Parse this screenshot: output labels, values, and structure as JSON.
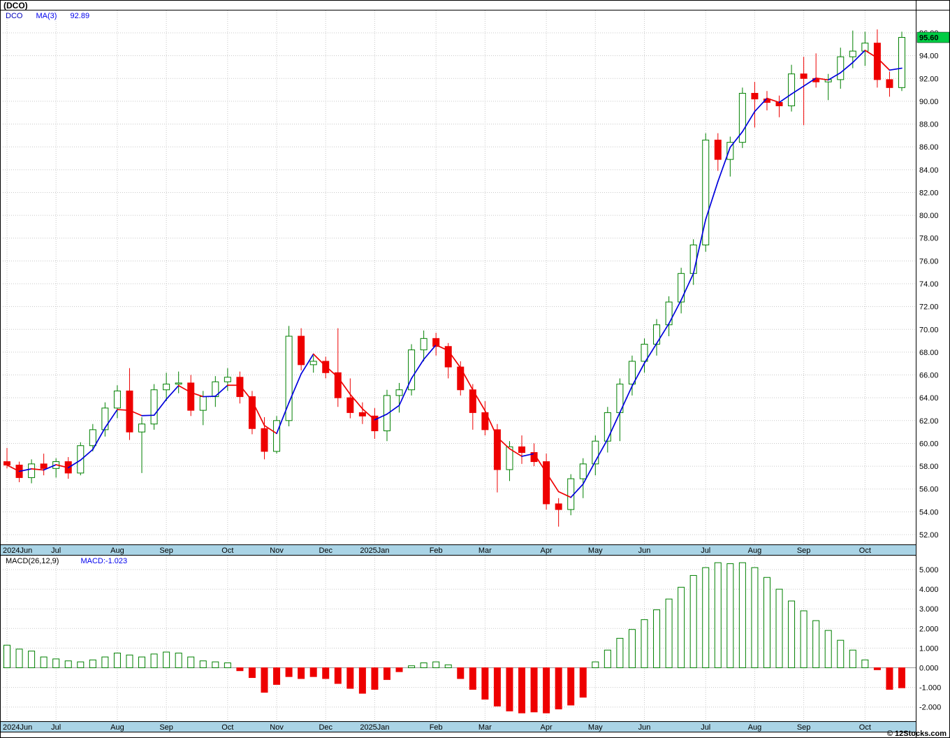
{
  "page_title": "(DCO)",
  "copyright": "© 12Stocks.com",
  "main_legend": {
    "symbol": "DCO",
    "ma_label": "MA(3)",
    "ma_value": "92.89"
  },
  "macd_legend": {
    "label": "MACD(26,12,9)",
    "value": "MACD:-1.023"
  },
  "last_price_badge": "95.60",
  "colors": {
    "up": "#008000",
    "down": "#ee0000",
    "ma_up": "#0000dd",
    "ma_down": "#ee0000",
    "grid": "#c8c8c8",
    "zero_line": "#999999",
    "band_bg": "#aad4e6",
    "badge_bg": "#00cc44",
    "text": "#000000"
  },
  "chart_data": [
    {
      "type": "candlestick",
      "title": "(DCO)",
      "ylim": [
        52,
        96
      ],
      "y_tick_step": 2,
      "y_ticks": [
        "96.00",
        "94.00",
        "92.00",
        "90.00",
        "88.00",
        "86.00",
        "84.00",
        "82.00",
        "80.00",
        "78.00",
        "76.00",
        "74.00",
        "72.00",
        "70.00",
        "68.00",
        "66.00",
        "64.00",
        "62.00",
        "60.00",
        "58.00",
        "56.00",
        "54.00",
        "52.00"
      ],
      "x_tick_labels": [
        "2024Jun",
        "Jul",
        "Aug",
        "Sep",
        "Oct",
        "Nov",
        "Dec",
        "2025Jan",
        "Feb",
        "Mar",
        "Apr",
        "May",
        "Jun",
        "Jul",
        "Aug",
        "Sep",
        "Oct"
      ],
      "x_tick_indices": [
        0,
        4,
        9,
        13,
        18,
        22,
        26,
        30,
        35,
        39,
        44,
        48,
        52,
        57,
        61,
        65,
        70
      ],
      "last_close": 95.6,
      "ohlc": [
        [
          58.4,
          59.6,
          57.8,
          58.1
        ],
        [
          58.1,
          58.4,
          56.6,
          57.0
        ],
        [
          57.0,
          58.6,
          56.5,
          58.2
        ],
        [
          58.2,
          59.1,
          57.2,
          57.8
        ],
        [
          57.8,
          58.7,
          57.0,
          58.4
        ],
        [
          58.4,
          58.8,
          56.9,
          57.4
        ],
        [
          57.4,
          60.1,
          57.2,
          59.8
        ],
        [
          59.8,
          61.7,
          59.3,
          61.2
        ],
        [
          61.2,
          63.6,
          60.6,
          63.1
        ],
        [
          63.1,
          65.1,
          62.2,
          64.6
        ],
        [
          64.6,
          66.6,
          60.3,
          61.0
        ],
        [
          61.0,
          62.3,
          57.4,
          61.7
        ],
        [
          61.7,
          65.2,
          61.2,
          64.7
        ],
        [
          64.7,
          66.2,
          63.7,
          65.2
        ],
        [
          65.2,
          66.3,
          64.4,
          65.3
        ],
        [
          65.3,
          66.0,
          62.4,
          62.9
        ],
        [
          62.9,
          64.6,
          61.6,
          64.1
        ],
        [
          64.1,
          65.9,
          63.2,
          65.4
        ],
        [
          65.4,
          66.6,
          64.6,
          65.8
        ],
        [
          65.8,
          66.3,
          63.5,
          64.1
        ],
        [
          64.1,
          64.6,
          60.8,
          61.3
        ],
        [
          61.3,
          62.3,
          58.6,
          59.3
        ],
        [
          59.3,
          62.4,
          59.1,
          62.0
        ],
        [
          62.0,
          70.3,
          61.5,
          69.4
        ],
        [
          69.4,
          70.1,
          66.4,
          66.9
        ],
        [
          66.9,
          67.7,
          66.2,
          67.2
        ],
        [
          67.2,
          67.6,
          65.7,
          66.2
        ],
        [
          66.2,
          70.1,
          63.2,
          64.0
        ],
        [
          64.0,
          65.7,
          62.2,
          62.7
        ],
        [
          62.7,
          63.6,
          61.7,
          62.4
        ],
        [
          62.4,
          63.1,
          60.4,
          61.1
        ],
        [
          61.1,
          64.7,
          60.2,
          64.2
        ],
        [
          64.2,
          65.3,
          62.7,
          64.7
        ],
        [
          64.7,
          68.7,
          64.2,
          68.2
        ],
        [
          68.2,
          69.9,
          67.2,
          69.2
        ],
        [
          69.2,
          69.7,
          67.7,
          68.5
        ],
        [
          68.5,
          68.8,
          65.7,
          66.7
        ],
        [
          66.7,
          67.2,
          64.2,
          64.7
        ],
        [
          64.7,
          65.2,
          61.2,
          62.7
        ],
        [
          62.7,
          63.7,
          60.7,
          61.2
        ],
        [
          61.2,
          61.7,
          55.7,
          57.7
        ],
        [
          57.7,
          60.2,
          56.7,
          59.7
        ],
        [
          59.7,
          60.7,
          58.2,
          59.2
        ],
        [
          59.2,
          60.0,
          58.0,
          58.4
        ],
        [
          58.4,
          59.1,
          54.2,
          54.7
        ],
        [
          54.7,
          55.2,
          52.7,
          54.2
        ],
        [
          54.2,
          57.3,
          53.7,
          56.9
        ],
        [
          56.9,
          58.7,
          55.2,
          58.2
        ],
        [
          58.2,
          60.7,
          57.2,
          60.2
        ],
        [
          60.2,
          63.2,
          59.2,
          62.7
        ],
        [
          62.7,
          65.7,
          60.2,
          65.2
        ],
        [
          65.2,
          67.7,
          64.2,
          67.2
        ],
        [
          67.2,
          69.2,
          66.2,
          68.7
        ],
        [
          68.7,
          70.9,
          67.7,
          70.4
        ],
        [
          70.4,
          72.9,
          69.4,
          72.4
        ],
        [
          72.4,
          75.4,
          71.4,
          74.9
        ],
        [
          74.9,
          77.9,
          73.9,
          77.4
        ],
        [
          77.4,
          87.2,
          76.8,
          86.6
        ],
        [
          86.6,
          87.2,
          83.9,
          84.9
        ],
        [
          84.9,
          86.9,
          83.4,
          86.4
        ],
        [
          86.4,
          91.2,
          85.9,
          90.7
        ],
        [
          90.7,
          91.7,
          87.7,
          90.2
        ],
        [
          90.2,
          90.9,
          89.2,
          89.9
        ],
        [
          89.9,
          90.5,
          88.6,
          89.6
        ],
        [
          89.6,
          93.2,
          89.1,
          92.4
        ],
        [
          92.4,
          93.9,
          87.9,
          92.0
        ],
        [
          92.0,
          94.2,
          91.2,
          91.7
        ],
        [
          91.7,
          92.4,
          90.1,
          91.9
        ],
        [
          91.9,
          94.7,
          91.1,
          93.9
        ],
        [
          93.9,
          96.2,
          92.9,
          94.4
        ],
        [
          94.4,
          96.1,
          93.1,
          95.1
        ],
        [
          95.1,
          96.3,
          91.2,
          91.9
        ],
        [
          91.9,
          92.6,
          90.4,
          91.2
        ],
        [
          91.2,
          96.1,
          90.9,
          95.6
        ]
      ],
      "overlays": [
        {
          "name": "MA(3)",
          "type": "moving_average",
          "window": 3,
          "last_value": 92.89,
          "style": "blue when rising, red when falling"
        }
      ]
    },
    {
      "type": "bar",
      "title": "MACD(26,12,9)",
      "ylim": [
        -2.5,
        5.7
      ],
      "y_tick_step": 1,
      "y_ticks": [
        "5.000",
        "4.000",
        "3.000",
        "2.000",
        "1.000",
        "0.000",
        "-1.000",
        "-2.000"
      ],
      "last_value": -1.023,
      "values": [
        1.15,
        0.95,
        0.85,
        0.55,
        0.45,
        0.35,
        0.3,
        0.4,
        0.55,
        0.75,
        0.65,
        0.55,
        0.7,
        0.8,
        0.75,
        0.55,
        0.35,
        0.3,
        0.25,
        -0.15,
        -0.5,
        -1.25,
        -0.85,
        -0.45,
        -0.55,
        -0.45,
        -0.55,
        -0.8,
        -1.05,
        -1.3,
        -1.1,
        -0.6,
        -0.2,
        0.1,
        0.25,
        0.3,
        0.15,
        -0.55,
        -1.1,
        -1.6,
        -1.95,
        -2.2,
        -2.3,
        -2.25,
        -2.3,
        -2.1,
        -1.9,
        -1.5,
        0.3,
        0.9,
        1.5,
        1.95,
        2.45,
        2.95,
        3.5,
        4.1,
        4.7,
        5.1,
        5.35,
        5.3,
        5.35,
        5.1,
        4.6,
        4.0,
        3.4,
        2.9,
        2.4,
        1.9,
        1.4,
        0.9,
        0.4,
        -0.1,
        -1.1,
        -1.02
      ]
    }
  ]
}
